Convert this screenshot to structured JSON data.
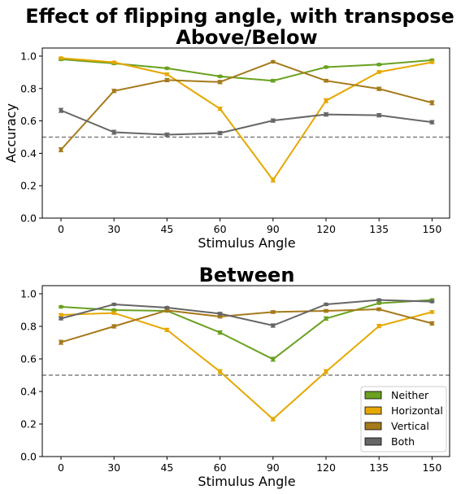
{
  "figure_title": "Effect of flipping angle, with transpose",
  "colors": {
    "Neither": "#6aa121",
    "Horizontal": "#e5a800",
    "Vertical": "#a57a1b",
    "Both": "#666666",
    "chance": "#808080"
  },
  "chart_data": [
    {
      "type": "line",
      "title": "Above/Below",
      "xlabel": "Stimulus Angle",
      "ylabel": "Accuracy",
      "categories": [
        "0",
        "30",
        "45",
        "60",
        "90",
        "120",
        "135",
        "150"
      ],
      "ylim": [
        0,
        1.05
      ],
      "yticks": [
        "0.0",
        "0.2",
        "0.4",
        "0.6",
        "0.8",
        "1.0"
      ],
      "chance_line": 0.5,
      "grid": false,
      "series": [
        {
          "name": "Neither",
          "values": [
            0.98,
            0.955,
            0.925,
            0.875,
            0.848,
            0.932,
            0.948,
            0.975
          ],
          "err": [
            0.006,
            0.006,
            0.006,
            0.006,
            0.008,
            0.006,
            0.006,
            0.006
          ]
        },
        {
          "name": "Horizontal",
          "values": [
            0.988,
            0.962,
            0.888,
            0.675,
            0.235,
            0.725,
            0.902,
            0.962
          ],
          "err": [
            0.006,
            0.006,
            0.008,
            0.01,
            0.012,
            0.012,
            0.008,
            0.006
          ]
        },
        {
          "name": "Vertical",
          "values": [
            0.422,
            0.785,
            0.852,
            0.84,
            0.965,
            0.848,
            0.798,
            0.712
          ],
          "err": [
            0.012,
            0.01,
            0.01,
            0.01,
            0.006,
            0.008,
            0.01,
            0.012
          ]
        },
        {
          "name": "Both",
          "values": [
            0.665,
            0.53,
            0.515,
            0.525,
            0.602,
            0.64,
            0.635,
            0.592
          ],
          "err": [
            0.012,
            0.012,
            0.01,
            0.01,
            0.01,
            0.01,
            0.01,
            0.01
          ]
        }
      ]
    },
    {
      "type": "line",
      "title": "Between",
      "xlabel": "Stimulus Angle",
      "ylabel": "",
      "categories": [
        "0",
        "30",
        "45",
        "60",
        "90",
        "120",
        "135",
        "150"
      ],
      "ylim": [
        0,
        1.05
      ],
      "yticks": [
        "0.0",
        "0.2",
        "0.4",
        "0.6",
        "0.8",
        "1.0"
      ],
      "chance_line": 0.5,
      "grid": false,
      "legend": {
        "placement": "lower-right",
        "entries": [
          "Neither",
          "Horizontal",
          "Vertical",
          "Both"
        ]
      },
      "series": [
        {
          "name": "Neither",
          "values": [
            0.92,
            0.9,
            0.895,
            0.762,
            0.598,
            0.848,
            0.942,
            0.962
          ],
          "err": [
            0.006,
            0.006,
            0.006,
            0.01,
            0.012,
            0.01,
            0.006,
            0.006
          ]
        },
        {
          "name": "Horizontal",
          "values": [
            0.87,
            0.882,
            0.778,
            0.522,
            0.23,
            0.522,
            0.802,
            0.888
          ],
          "err": [
            0.008,
            0.008,
            0.01,
            0.012,
            0.01,
            0.012,
            0.01,
            0.008
          ]
        },
        {
          "name": "Vertical",
          "values": [
            0.702,
            0.8,
            0.898,
            0.86,
            0.888,
            0.895,
            0.905,
            0.818
          ],
          "err": [
            0.012,
            0.01,
            0.008,
            0.008,
            0.008,
            0.008,
            0.008,
            0.01
          ]
        },
        {
          "name": "Both",
          "values": [
            0.848,
            0.935,
            0.915,
            0.878,
            0.805,
            0.935,
            0.962,
            0.952
          ],
          "err": [
            0.008,
            0.006,
            0.006,
            0.008,
            0.01,
            0.006,
            0.006,
            0.006
          ]
        }
      ]
    }
  ]
}
